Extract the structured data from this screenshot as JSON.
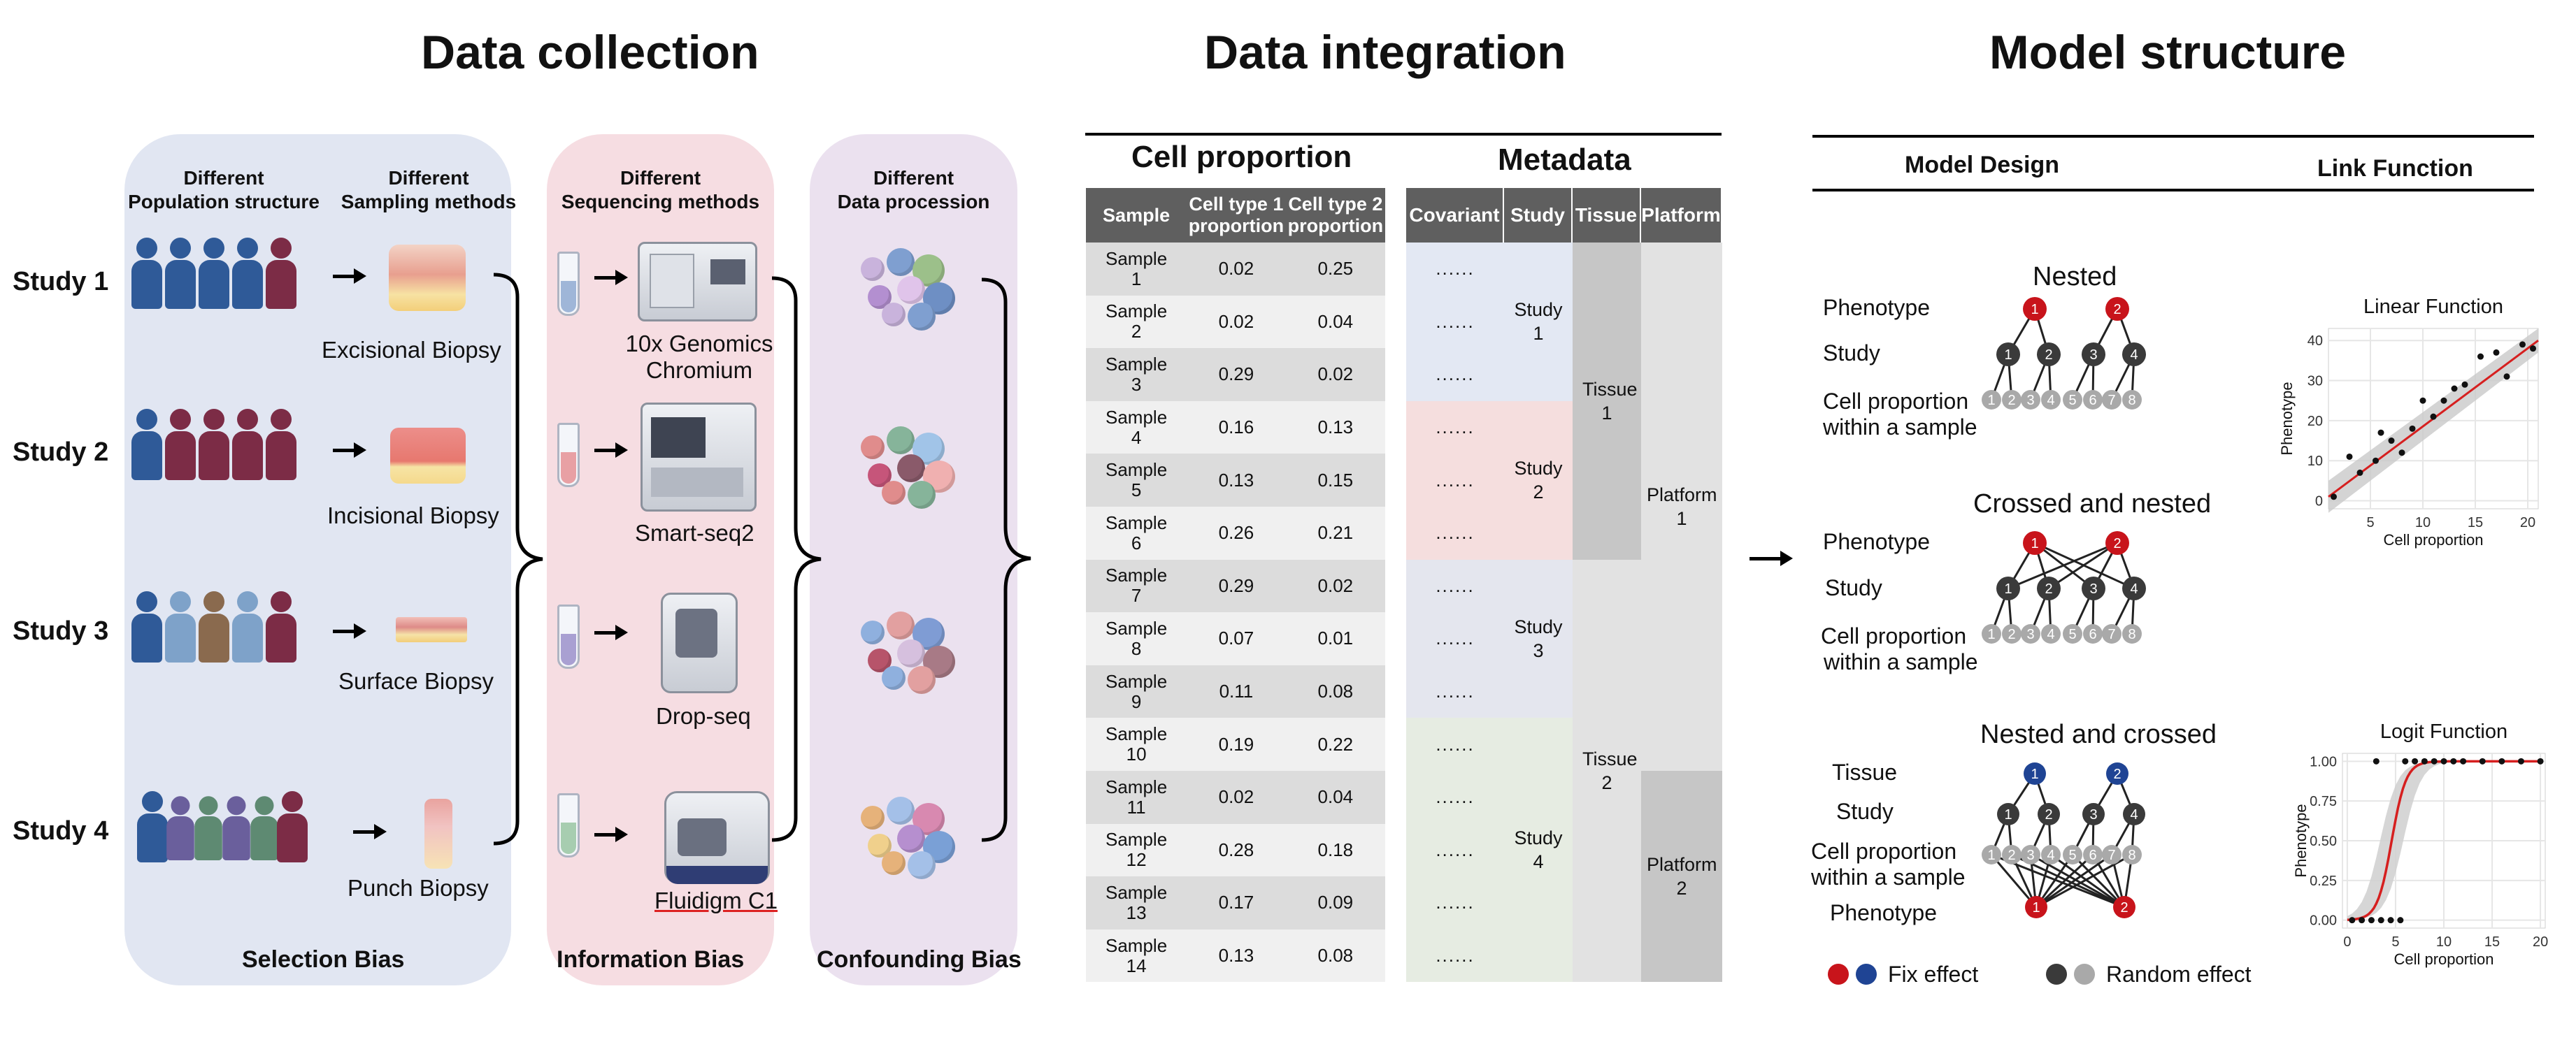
{
  "titles": {
    "collection": "Data collection",
    "integration": "Data integration",
    "model": "Model structure"
  },
  "collection": {
    "pop_header": [
      "Different",
      "Population structure"
    ],
    "samp_header": [
      "Different",
      "Sampling methods"
    ],
    "seq_header": [
      "Different",
      "Sequencing methods"
    ],
    "proc_header": [
      "Different",
      "Data procession"
    ],
    "studies": [
      "Study 1",
      "Study 2",
      "Study 3",
      "Study 4"
    ],
    "biopsies": [
      "Excisional Biopsy",
      "Incisional Biopsy",
      "Surface Biopsy",
      "Punch Biopsy"
    ],
    "platforms": [
      "10x Genomics",
      "Chromium",
      "Smart-seq2",
      "Drop-seq",
      "Fluidigm C1"
    ],
    "biases": [
      "Selection Bias",
      "Information Bias",
      "Confounding Bias"
    ]
  },
  "integration": {
    "cell_caption": "Cell proportion",
    "meta_caption": "Metadata",
    "cell_headers": [
      "Sample",
      "Cell type 1 proportion",
      "Cell type 2 proportion"
    ],
    "meta_headers": [
      "Covariant",
      "Study",
      "Tissue",
      "Platform"
    ],
    "rows": [
      [
        "Sample 1",
        "0.02",
        "0.25"
      ],
      [
        "Sample 2",
        "0.02",
        "0.04"
      ],
      [
        "Sample 3",
        "0.29",
        "0.02"
      ],
      [
        "Sample 4",
        "0.16",
        "0.13"
      ],
      [
        "Sample 5",
        "0.13",
        "0.15"
      ],
      [
        "Sample 6",
        "0.26",
        "0.21"
      ],
      [
        "Sample 7",
        "0.29",
        "0.02"
      ],
      [
        "Sample 8",
        "0.07",
        "0.01"
      ],
      [
        "Sample 9",
        "0.11",
        "0.08"
      ],
      [
        "Sample 10",
        "0.19",
        "0.22"
      ],
      [
        "Sample 11",
        "0.02",
        "0.04"
      ],
      [
        "Sample 12",
        "0.28",
        "0.18"
      ],
      [
        "Sample 13",
        "0.17",
        "0.09"
      ],
      [
        "Sample 14",
        "0.13",
        "0.08"
      ]
    ],
    "covariant_text": "......",
    "study_groups": [
      {
        "label": "Study 1",
        "rows": 3,
        "color": "#e3e8f3"
      },
      {
        "label": "Study 2",
        "rows": 3,
        "color": "#f5dede"
      },
      {
        "label": "Study 3",
        "rows": 3,
        "color": "#e4e6ee"
      },
      {
        "label": "Study 4",
        "rows": 5,
        "color": "#e6ece2"
      }
    ],
    "tissue_groups": [
      {
        "label": "Tissue 1",
        "rows": 6,
        "color": "#c6c6c6"
      },
      {
        "label": "Tissue 2",
        "rows": 8,
        "color": "#e2e2e2"
      }
    ],
    "platform_groups": [
      {
        "label": "Platform 1",
        "rows": 10,
        "color": "#e2e2e2"
      },
      {
        "label": "Platform 2",
        "rows": 4,
        "color": "#c6c6c6"
      }
    ]
  },
  "model": {
    "design_header": "Model Design",
    "link_header": "Link Function",
    "nested": {
      "title": "Nested",
      "labels": [
        "Phenotype",
        "Study",
        "Cell proportion",
        "within a sample"
      ],
      "top": [
        "1",
        "2"
      ],
      "mid": [
        "1",
        "2",
        "3",
        "4"
      ],
      "bottom": [
        "1",
        "2",
        "3",
        "4",
        "5",
        "6",
        "7",
        "8"
      ]
    },
    "crossed_nested": {
      "title": "Crossed and nested",
      "labels": [
        "Phenotype",
        "Study",
        "Cell proportion",
        "within a sample"
      ],
      "top": [
        "1",
        "2"
      ],
      "mid": [
        "1",
        "2",
        "3",
        "4"
      ],
      "bottom": [
        "1",
        "2",
        "3",
        "4",
        "5",
        "6",
        "7",
        "8"
      ]
    },
    "nested_crossed": {
      "title": "Nested and crossed",
      "labels": [
        "Tissue",
        "Study",
        "Cell proportion",
        "within a sample",
        "Phenotype"
      ],
      "top": [
        "1",
        "2"
      ],
      "mid": [
        "1",
        "2",
        "3",
        "4"
      ],
      "bottom": [
        "1",
        "2",
        "3",
        "4",
        "5",
        "6",
        "7",
        "8"
      ],
      "pheno": [
        "1",
        "2"
      ]
    },
    "legend": {
      "fix": "Fix effect",
      "random": "Random effect"
    },
    "colors": {
      "fix_red": "#c8141b",
      "fix_blue": "#1f4494",
      "random_dark": "#3a3a3a",
      "random_light": "#a9a9a9"
    }
  },
  "chart_data": [
    {
      "type": "scatter",
      "title": "Linear Function",
      "xlabel": "Cell proportion",
      "ylabel": "Phenotype",
      "xlim": [
        1,
        21
      ],
      "ylim": [
        -2,
        43
      ],
      "xticks": [
        "5",
        "10",
        "15",
        "20"
      ],
      "yticks": [
        "0",
        "10",
        "20",
        "30",
        "40"
      ],
      "points": [
        [
          1.5,
          1
        ],
        [
          3,
          11
        ],
        [
          4,
          7
        ],
        [
          5.5,
          10
        ],
        [
          6,
          17
        ],
        [
          7,
          15
        ],
        [
          8,
          12
        ],
        [
          9,
          18
        ],
        [
          10,
          25
        ],
        [
          11,
          21
        ],
        [
          12,
          25
        ],
        [
          13,
          28
        ],
        [
          14,
          29
        ],
        [
          15.5,
          36
        ],
        [
          17,
          37
        ],
        [
          18,
          31
        ],
        [
          19.5,
          39
        ],
        [
          20.5,
          38
        ]
      ],
      "fit": [
        [
          1,
          1
        ],
        [
          21,
          40
        ]
      ],
      "grid": true
    },
    {
      "type": "scatter",
      "title": "Logit Function",
      "xlabel": "Cell proportion",
      "ylabel": "Phenotype",
      "xlim": [
        -0.5,
        20.5
      ],
      "ylim": [
        -0.05,
        1.05
      ],
      "xticks": [
        "0",
        "5",
        "10",
        "15",
        "20"
      ],
      "yticks": [
        "0.00",
        "0.25",
        "0.50",
        "0.75",
        "1.00"
      ],
      "points_low_x": [
        0.5,
        1.5,
        2.5,
        3.5,
        4.5,
        5.5
      ],
      "points_high_x": [
        3,
        6,
        7,
        8,
        9,
        10,
        11,
        12,
        14,
        16,
        18,
        20
      ],
      "logit_center": 4.6,
      "logit_slope": 1.35,
      "grid": true
    }
  ]
}
